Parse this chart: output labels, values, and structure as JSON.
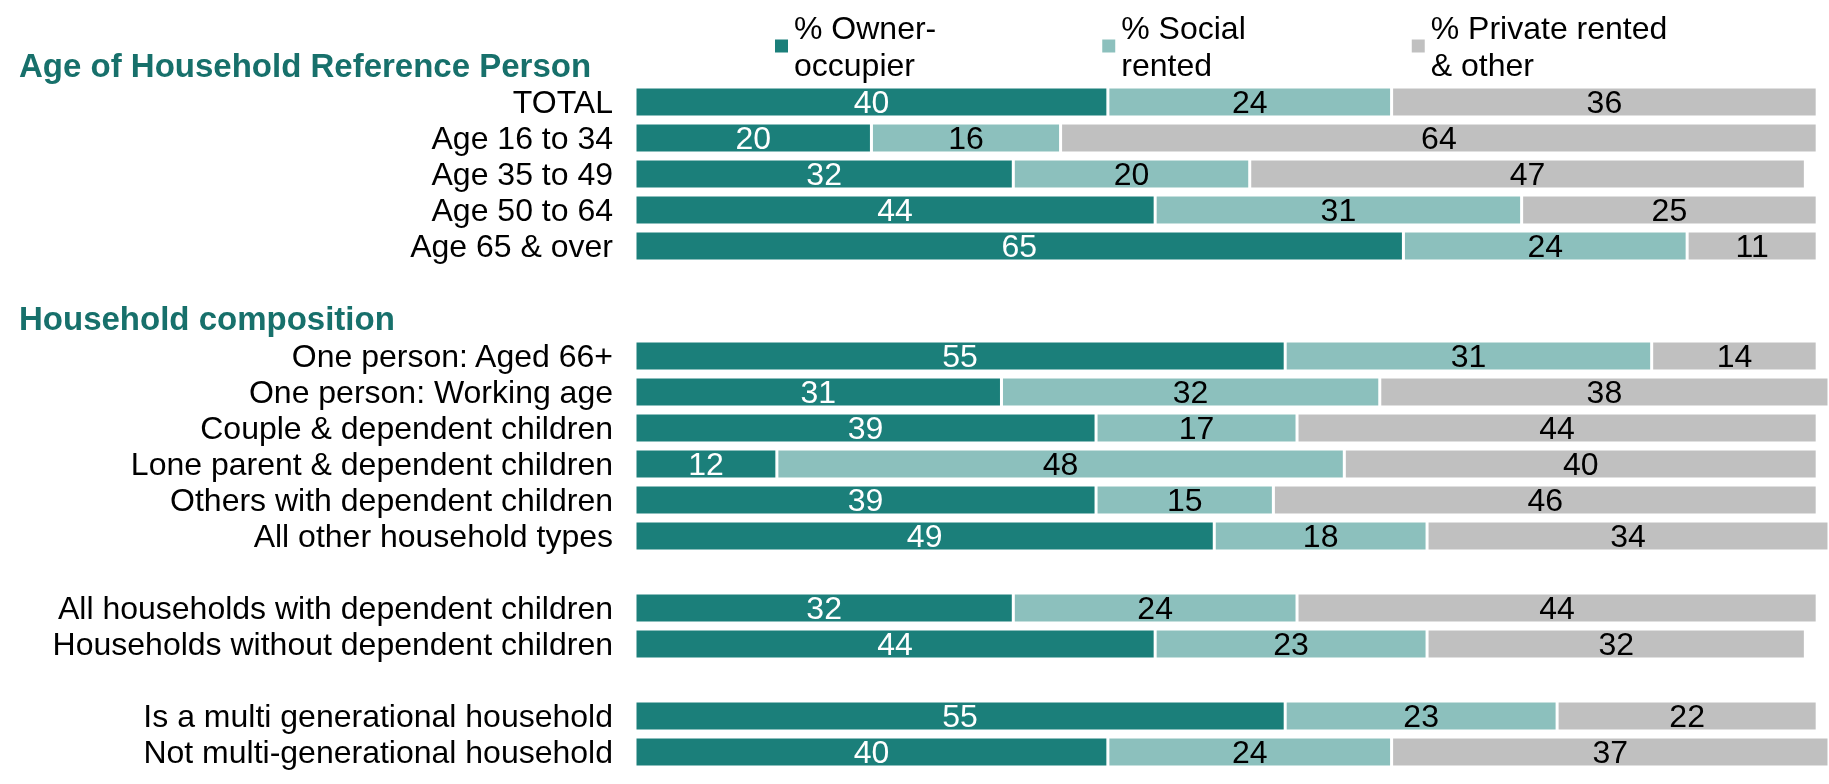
{
  "chart_data": [
    {
      "type": "bar",
      "orientation": "horizontal",
      "stacked": true,
      "data_labels": true,
      "legend": "top",
      "title": "Age of Household Reference Person",
      "categories": [
        "TOTAL",
        "Age 16 to 34",
        "Age 35 to 49",
        "Age 50 to 64",
        "Age 65 & over"
      ],
      "series": [
        {
          "name": "% Owner-\noccupier",
          "color": "#1b7f7a",
          "values": [
            40,
            20,
            32,
            44,
            65
          ]
        },
        {
          "name": "% Social\nrented",
          "color": "#8cc0bd",
          "values": [
            24,
            16,
            20,
            31,
            24
          ]
        },
        {
          "name": "% Private rented\n& other",
          "color": "#c0c0c0",
          "values": [
            36,
            64,
            47,
            25,
            11
          ]
        }
      ]
    },
    {
      "type": "bar",
      "orientation": "horizontal",
      "stacked": true,
      "data_labels": true,
      "title": "Household composition",
      "categories": [
        "One person: Aged 66+",
        "One person: Working age",
        "Couple & dependent children",
        "Lone parent & dependent children",
        "Others with dependent children",
        "All other household types",
        null,
        "All households with dependent children",
        "Households without dependent children",
        null,
        "Is a multi generational household",
        "Not multi-generational household"
      ],
      "series": [
        {
          "color": "#1b7f7a",
          "values": [
            55,
            31,
            39,
            12,
            39,
            49,
            null,
            32,
            44,
            null,
            55,
            40
          ]
        },
        {
          "color": "#8cc0bd",
          "values": [
            31,
            32,
            17,
            48,
            15,
            18,
            null,
            24,
            23,
            null,
            23,
            24
          ]
        },
        {
          "color": "#c0c0c0",
          "values": [
            14,
            38,
            44,
            40,
            46,
            34,
            null,
            44,
            32,
            null,
            22,
            37
          ]
        }
      ]
    }
  ]
}
